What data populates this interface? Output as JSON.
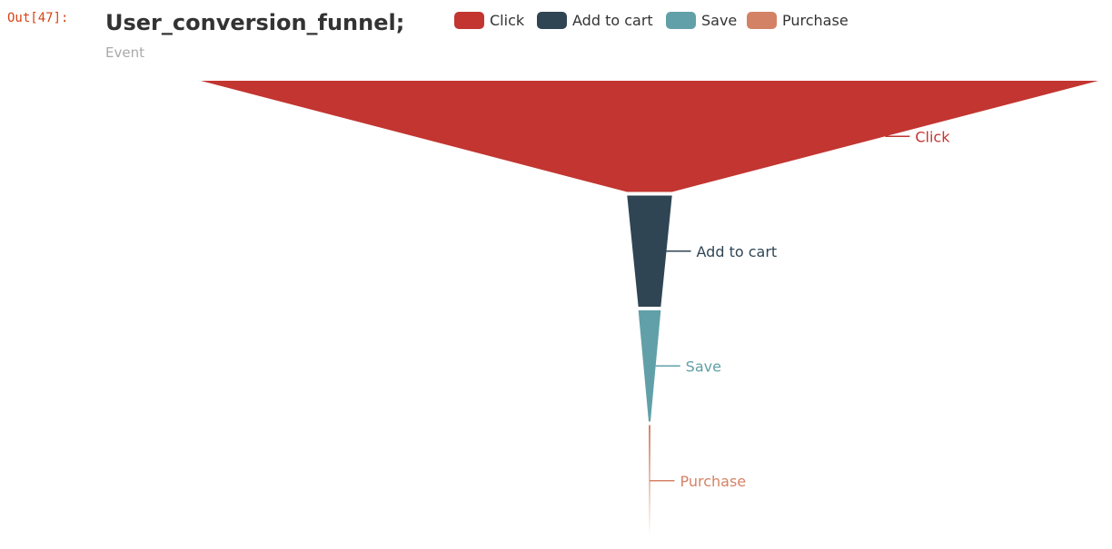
{
  "cell": {
    "prompt": "Out[47]:"
  },
  "chart_data": {
    "type": "funnel",
    "title": "User_conversion_funnel;",
    "subtitle": "Event",
    "categories": [
      "Click",
      "Add to cart",
      "Save",
      "Purchase"
    ],
    "values": [
      100,
      5,
      2.5,
      0.2
    ],
    "colors": [
      "#c23531",
      "#2f4554",
      "#61a0a8",
      "#d48265"
    ],
    "legend": {
      "position": "top",
      "entries": [
        "Click",
        "Add to cart",
        "Save",
        "Purchase"
      ]
    },
    "sort": "descending"
  }
}
